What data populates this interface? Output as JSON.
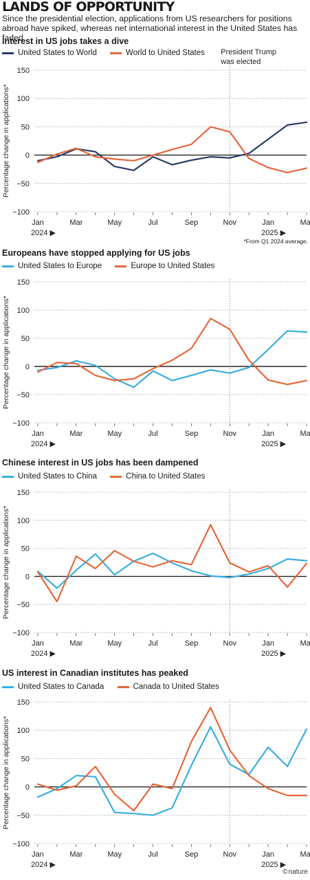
{
  "title": "LANDS OF OPPORTUNITY",
  "subtitle": "Since the presidential election, applications from US researchers for positions abroad have spiked, whereas net international interest in the United States has faded.",
  "footnote": "*From Q1 2024 average.",
  "credit": "nature",
  "credit_icon": "©",
  "colors": {
    "blue": "#2b3a67",
    "cyan": "#3aaee0",
    "orange": "#e3683a",
    "grid": "#9a9a9a",
    "axis": "#222222"
  },
  "chart_data": [
    {
      "type": "line",
      "title": "Interest in US jobs takes a dive",
      "ylabel": "Percentage change in applications*",
      "ylim": [
        -100,
        150
      ],
      "yticks": [
        "150",
        "100",
        "50",
        "0",
        "−50",
        "−100"
      ],
      "ytick_values": [
        150,
        100,
        50,
        0,
        -50,
        -100
      ],
      "x": [
        "2024-01",
        "2024-02",
        "2024-03",
        "2024-04",
        "2024-05",
        "2024-06",
        "2024-07",
        "2024-08",
        "2024-09",
        "2024-10",
        "2024-11",
        "2024-12",
        "2025-01",
        "2025-02",
        "2025-03"
      ],
      "xticks": [
        {
          "label": "Jan",
          "year": "2024"
        },
        {
          "label": "Mar"
        },
        {
          "label": "May"
        },
        {
          "label": "Jul"
        },
        {
          "label": "Sep"
        },
        {
          "label": "Nov"
        },
        {
          "label": "Jan",
          "year": "2025"
        },
        {
          "label": "Mar"
        }
      ],
      "annotation": {
        "text": [
          "President Trump",
          "was elected"
        ],
        "x": "2024-11"
      },
      "series": [
        {
          "name": "United States to World",
          "color": "#2b3a67",
          "values": [
            -10,
            -3,
            11,
            6,
            -20,
            -27,
            -3,
            -17,
            -9,
            -3,
            -5,
            3,
            28,
            53,
            58
          ]
        },
        {
          "name": "World to United States",
          "color": "#e3683a",
          "values": [
            -13,
            2,
            12,
            -3,
            -7,
            -10,
            0,
            10,
            19,
            50,
            41,
            -6,
            -22,
            -31,
            -23
          ]
        }
      ]
    },
    {
      "type": "line",
      "title": "Europeans have stopped applying for US jobs",
      "ylabel": "Percentage change in applications*",
      "ylim": [
        -100,
        150
      ],
      "yticks": [
        "150",
        "100",
        "50",
        "0",
        "−50",
        "−100"
      ],
      "ytick_values": [
        150,
        100,
        50,
        0,
        -50,
        -100
      ],
      "x": [
        "2024-01",
        "2024-02",
        "2024-03",
        "2024-04",
        "2024-05",
        "2024-06",
        "2024-07",
        "2024-08",
        "2024-09",
        "2024-10",
        "2024-11",
        "2024-12",
        "2025-01",
        "2025-02",
        "2025-03"
      ],
      "xticks": [
        {
          "label": "Jan",
          "year": "2024"
        },
        {
          "label": "Mar"
        },
        {
          "label": "May"
        },
        {
          "label": "Jul"
        },
        {
          "label": "Sep"
        },
        {
          "label": "Nov"
        },
        {
          "label": "Jan",
          "year": "2025"
        },
        {
          "label": "Mar"
        }
      ],
      "series": [
        {
          "name": "United States to Europe",
          "color": "#3aaee0",
          "values": [
            -7,
            -2,
            10,
            2,
            -22,
            -37,
            -8,
            -25,
            -16,
            -6,
            -12,
            -2,
            30,
            63,
            61
          ]
        },
        {
          "name": "Europe to United States",
          "color": "#e3683a",
          "values": [
            -10,
            7,
            5,
            -16,
            -25,
            -22,
            -4,
            11,
            32,
            85,
            66,
            11,
            -24,
            -32,
            -25
          ]
        }
      ]
    },
    {
      "type": "line",
      "title": "Chinese interest in US jobs has been dampened",
      "ylabel": "Percentage change in applications*",
      "ylim": [
        -100,
        150
      ],
      "yticks": [
        "150",
        "100",
        "50",
        "0",
        "−50",
        "−100"
      ],
      "ytick_values": [
        150,
        100,
        50,
        0,
        -50,
        -100
      ],
      "x": [
        "2024-01",
        "2024-02",
        "2024-03",
        "2024-04",
        "2024-05",
        "2024-06",
        "2024-07",
        "2024-08",
        "2024-09",
        "2024-10",
        "2024-11",
        "2024-12",
        "2025-01",
        "2025-02",
        "2025-03"
      ],
      "xticks": [
        {
          "label": "Jan",
          "year": "2024"
        },
        {
          "label": "Mar"
        },
        {
          "label": "May"
        },
        {
          "label": "Jul"
        },
        {
          "label": "Sep"
        },
        {
          "label": "Nov"
        },
        {
          "label": "Jan",
          "year": "2025"
        },
        {
          "label": "Mar"
        }
      ],
      "series": [
        {
          "name": "United States to China",
          "color": "#3aaee0",
          "values": [
            9,
            -21,
            11,
            40,
            3,
            27,
            41,
            24,
            10,
            1,
            -2,
            4,
            14,
            31,
            28
          ]
        },
        {
          "name": "China to United States",
          "color": "#e3683a",
          "values": [
            8,
            -45,
            36,
            14,
            46,
            27,
            17,
            28,
            21,
            92,
            24,
            8,
            19,
            -19,
            23
          ]
        }
      ]
    },
    {
      "type": "line",
      "title": "US interest in Canadian institutes has peaked",
      "ylabel": "Percentage change in applications*",
      "ylim": [
        -100,
        150
      ],
      "yticks": [
        "150",
        "100",
        "50",
        "0",
        "−50",
        "−100"
      ],
      "ytick_values": [
        150,
        100,
        50,
        0,
        -50,
        -100
      ],
      "x": [
        "2024-01",
        "2024-02",
        "2024-03",
        "2024-04",
        "2024-05",
        "2024-06",
        "2024-07",
        "2024-08",
        "2024-09",
        "2024-10",
        "2024-11",
        "2024-12",
        "2025-01",
        "2025-02",
        "2025-03"
      ],
      "xticks": [
        {
          "label": "Jan",
          "year": "2024"
        },
        {
          "label": "Mar"
        },
        {
          "label": "May"
        },
        {
          "label": "Jul"
        },
        {
          "label": "Sep"
        },
        {
          "label": "Nov"
        },
        {
          "label": "Jan",
          "year": "2025"
        },
        {
          "label": "Mar"
        }
      ],
      "series": [
        {
          "name": "United States to Canada",
          "color": "#3aaee0",
          "values": [
            -18,
            -3,
            20,
            18,
            -45,
            -47,
            -50,
            -37,
            38,
            106,
            40,
            22,
            70,
            36,
            102
          ]
        },
        {
          "name": "Canada to United States",
          "color": "#e3683a",
          "values": [
            5,
            -6,
            2,
            36,
            -13,
            -42,
            5,
            -3,
            80,
            140,
            65,
            20,
            -3,
            -15,
            -15
          ]
        }
      ]
    }
  ]
}
